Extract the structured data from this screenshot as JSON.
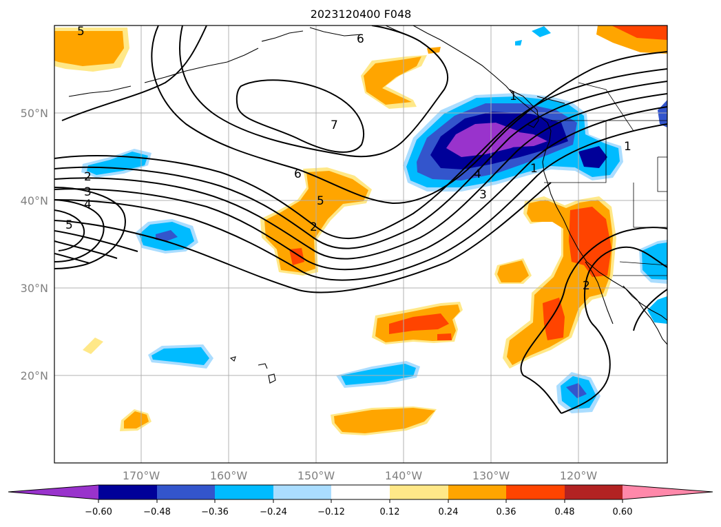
{
  "title": "2023120400 F048",
  "map": {
    "projection": "equirectangular",
    "lon_range": [
      -180,
      -110
    ],
    "lat_range": [
      10,
      60
    ],
    "grid": true,
    "lat_labels": [
      {
        "lat": 50,
        "text": "50°N"
      },
      {
        "lat": 40,
        "text": "40°N"
      },
      {
        "lat": 30,
        "text": "30°N"
      },
      {
        "lat": 20,
        "text": "20°N"
      }
    ],
    "lon_labels": [
      {
        "lon": -170,
        "text": "170°W"
      },
      {
        "lon": -160,
        "text": "160°W"
      },
      {
        "lon": -150,
        "text": "150°W"
      },
      {
        "lon": -140,
        "text": "140°W"
      },
      {
        "lon": -130,
        "text": "130°W"
      },
      {
        "lon": -120,
        "text": "120°W"
      }
    ],
    "contour_labels": [
      "5",
      "6",
      "7",
      "6",
      "5",
      "2",
      "2",
      "3",
      "4",
      "5",
      "4",
      "3",
      "1",
      "1",
      "1",
      "2"
    ]
  },
  "colorbar": {
    "ticks": [
      "−0.60",
      "−0.48",
      "−0.36",
      "−0.24",
      "−0.12",
      "0.12",
      "0.24",
      "0.36",
      "0.48",
      "0.60"
    ],
    "colors": [
      "#9933cc",
      "#000099",
      "#3355cc",
      "#00bbff",
      "#aaddff",
      "#ffffff",
      "#ffe888",
      "#ffa500",
      "#ff4400",
      "#b22222",
      "#ff88aa"
    ],
    "extend": "both"
  }
}
